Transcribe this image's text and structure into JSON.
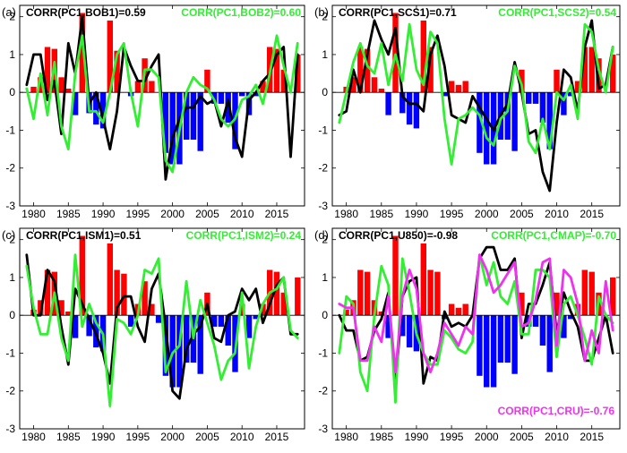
{
  "colors": {
    "positive_bar": "#ff0000",
    "negative_bar": "#0000ff",
    "black_line": "#000000",
    "green_line": "#33ee33",
    "magenta_line": "#ee33ee"
  },
  "chart_data": [
    {
      "type": "bar",
      "panel": "(a)",
      "title_left": "CORR(PC1,BOB1)=0.59",
      "title_right": "CORR(PC1,BOB2)=0.60",
      "xlim": [
        1978,
        2019
      ],
      "ylim": [
        -3,
        2.3
      ],
      "xticks": [
        1980,
        1985,
        1990,
        1995,
        2000,
        2005,
        2010,
        2015
      ],
      "yticks": [
        -3,
        -2,
        -1,
        0,
        1,
        2
      ],
      "x": [
        1979,
        1980,
        1981,
        1982,
        1983,
        1984,
        1985,
        1986,
        1987,
        1988,
        1989,
        1990,
        1991,
        1992,
        1993,
        1994,
        1995,
        1996,
        1997,
        1998,
        1999,
        2000,
        2001,
        2002,
        2003,
        2004,
        2005,
        2006,
        2007,
        2008,
        2009,
        2010,
        2011,
        2012,
        2013,
        2014,
        2015,
        2016,
        2017,
        2018
      ],
      "bars": [
        0.0,
        0.15,
        0.4,
        1.2,
        1.15,
        0.4,
        0.1,
        -0.6,
        2.1,
        -0.55,
        -0.85,
        -0.95,
        1.9,
        1.1,
        0.0,
        -0.1,
        0.3,
        0.9,
        0.3,
        0.0,
        -1.6,
        -1.9,
        -1.9,
        -1.25,
        -1.25,
        -1.55,
        0.6,
        -0.3,
        -0.3,
        -0.8,
        -1.5,
        -0.1,
        -0.6,
        -0.1,
        0.3,
        1.2,
        1.15,
        0.6,
        0.0,
        1.0
      ],
      "series": [
        {
          "name": "BOB1",
          "color": "black",
          "values": [
            0.2,
            1.0,
            1.0,
            -0.2,
            0.3,
            -1.1,
            1.3,
            0.5,
            2.0,
            -0.3,
            0.0,
            -0.7,
            -1.5,
            -0.5,
            1.2,
            0.7,
            0.3,
            0.3,
            0.7,
            1.0,
            -2.3,
            -1.2,
            -0.7,
            -0.4,
            -0.4,
            -0.1,
            -0.3,
            -0.2,
            -0.9,
            -0.2,
            -1.2,
            -1.7,
            -0.2,
            0.0,
            0.3,
            0.5,
            1.0,
            1.2,
            -1.7,
            1.0
          ]
        },
        {
          "name": "BOB2",
          "color": "green",
          "values": [
            0.1,
            -0.7,
            0.5,
            -0.6,
            0.8,
            -0.9,
            -1.5,
            0.5,
            1.5,
            -0.5,
            -0.5,
            -0.8,
            0.0,
            1.0,
            1.3,
            0.0,
            -0.9,
            0.6,
            0.6,
            0.4,
            -1.8,
            -2.1,
            -1.0,
            0.0,
            0.4,
            0.2,
            0.1,
            -0.2,
            -0.7,
            -0.9,
            -0.7,
            -0.2,
            -0.1,
            0.2,
            -0.3,
            0.5,
            1.5,
            0.7,
            0.0,
            1.3
          ]
        }
      ]
    },
    {
      "type": "bar",
      "panel": "(b)",
      "title_left": "CORR(PC1,SCS1)=0.71",
      "title_right": "CORR(PC1,SCS2)=0.54",
      "xlim": [
        1978,
        2019
      ],
      "ylim": [
        -3,
        2.3
      ],
      "xticks": [
        1980,
        1985,
        1990,
        1995,
        2000,
        2005,
        2010,
        2015
      ],
      "yticks": [
        -3,
        -2,
        -1,
        0,
        1,
        2
      ],
      "x": [
        1979,
        1980,
        1981,
        1982,
        1983,
        1984,
        1985,
        1986,
        1987,
        1988,
        1989,
        1990,
        1991,
        1992,
        1993,
        1994,
        1995,
        1996,
        1997,
        1998,
        1999,
        2000,
        2001,
        2002,
        2003,
        2004,
        2005,
        2006,
        2007,
        2008,
        2009,
        2010,
        2011,
        2012,
        2013,
        2014,
        2015,
        2016,
        2017,
        2018
      ],
      "bars": [
        0.0,
        0.15,
        0.4,
        1.2,
        1.15,
        0.4,
        0.1,
        -0.6,
        2.1,
        -0.55,
        -0.85,
        -0.95,
        1.9,
        1.2,
        0.0,
        -0.1,
        0.3,
        0.2,
        0.3,
        0.0,
        -1.6,
        -1.9,
        -1.9,
        -1.25,
        -1.25,
        -1.55,
        0.6,
        -0.3,
        -0.3,
        -0.8,
        -1.5,
        0.6,
        -0.6,
        -0.1,
        0.3,
        1.2,
        1.2,
        0.9,
        0.0,
        1.0
      ],
      "series": [
        {
          "name": "SCS1",
          "color": "black",
          "values": [
            -0.6,
            -0.5,
            0.6,
            0.0,
            1.0,
            1.9,
            1.4,
            1.0,
            1.7,
            -0.1,
            -0.3,
            -0.3,
            -0.5,
            1.0,
            1.5,
            0.7,
            -0.6,
            -0.7,
            -0.8,
            -0.1,
            -0.4,
            -0.7,
            -1.0,
            -0.6,
            -0.3,
            0.8,
            0.0,
            -1.1,
            -1.0,
            -2.1,
            -2.6,
            -0.8,
            0.6,
            0.4,
            -0.5,
            1.2,
            1.9,
            0.1,
            0.2,
            1.2
          ]
        },
        {
          "name": "SCS2",
          "color": "green",
          "values": [
            -0.8,
            0.0,
            0.8,
            1.3,
            0.7,
            0.5,
            1.3,
            0.2,
            1.0,
            0.3,
            1.8,
            0.6,
            0.2,
            1.6,
            1.3,
            -0.7,
            -1.9,
            -0.7,
            -0.6,
            -0.4,
            -0.6,
            -1.2,
            -1.4,
            -0.7,
            -0.5,
            0.7,
            0.2,
            -1.3,
            -1.6,
            -0.7,
            -1.5,
            0.0,
            -0.2,
            0.2,
            -0.7,
            1.8,
            1.6,
            0.6,
            0.0,
            1.2
          ]
        }
      ]
    },
    {
      "type": "bar",
      "panel": "(c)",
      "title_left": "CORR(PC1,ISM1)=0.51",
      "title_right": "CORR(PC1,ISM2)=0.24",
      "xlim": [
        1978,
        2019
      ],
      "ylim": [
        -3,
        2.3
      ],
      "xticks": [
        1980,
        1985,
        1990,
        1995,
        2000,
        2005,
        2010,
        2015
      ],
      "yticks": [
        -3,
        -2,
        -1,
        0,
        1,
        2
      ],
      "x": [
        1979,
        1980,
        1981,
        1982,
        1983,
        1984,
        1985,
        1986,
        1987,
        1988,
        1989,
        1990,
        1991,
        1992,
        1993,
        1994,
        1995,
        1996,
        1997,
        1998,
        1999,
        2000,
        2001,
        2002,
        2003,
        2004,
        2005,
        2006,
        2007,
        2008,
        2009,
        2010,
        2011,
        2012,
        2013,
        2014,
        2015,
        2016,
        2017,
        2018
      ],
      "bars": [
        0.0,
        0.15,
        0.4,
        1.2,
        1.15,
        0.4,
        0.1,
        -0.6,
        2.1,
        -0.55,
        -0.85,
        -0.95,
        1.9,
        1.2,
        1.1,
        -0.3,
        0.3,
        0.9,
        0.3,
        -0.2,
        -1.6,
        -1.9,
        -1.9,
        -1.25,
        -1.25,
        -1.55,
        0.6,
        -0.3,
        -0.3,
        -0.8,
        -1.5,
        0.3,
        -0.6,
        -0.1,
        0.3,
        1.2,
        1.15,
        0.6,
        0.0,
        1.0
      ],
      "series": [
        {
          "name": "ISM1",
          "color": "black",
          "values": [
            1.6,
            0.0,
            0.0,
            1.2,
            0.9,
            -0.3,
            -1.3,
            0.7,
            0.3,
            -0.1,
            -0.5,
            -1.0,
            -1.8,
            0.2,
            0.5,
            0.5,
            -0.3,
            -0.7,
            0.7,
            1.1,
            -0.3,
            -2.0,
            -2.2,
            -0.9,
            -0.5,
            -0.3,
            0.3,
            -0.6,
            -0.7,
            0.0,
            0.1,
            0.7,
            0.4,
            0.7,
            -0.2,
            0.3,
            0.8,
            1.0,
            -0.5,
            -0.5
          ]
        },
        {
          "name": "ISM2",
          "color": "green",
          "values": [
            1.3,
            0.2,
            -0.5,
            -0.5,
            0.6,
            -0.6,
            -1.2,
            1.6,
            -0.3,
            0.3,
            -0.2,
            -0.5,
            -2.4,
            -0.1,
            -0.2,
            -0.5,
            0.0,
            1.2,
            1.1,
            1.5,
            -1.5,
            -1.0,
            -0.8,
            0.9,
            -0.6,
            0.4,
            -0.2,
            -0.8,
            -1.7,
            -1.2,
            -1.0,
            0.6,
            -1.4,
            -0.3,
            0.3,
            0.6,
            0.7,
            1.0,
            -0.4,
            -0.6
          ]
        }
      ]
    },
    {
      "type": "bar",
      "panel": "(d)",
      "title_left": "CORR(PC1,U850)=-0.98",
      "title_right": "CORR(PC1,CMAP)=-0.70",
      "title_bottom": "CORR(PC1,CRU)=-0.76",
      "xlim": [
        1978,
        2019
      ],
      "ylim": [
        -3,
        2.3
      ],
      "xticks": [
        1980,
        1985,
        1990,
        1995,
        2000,
        2005,
        2010,
        2015
      ],
      "yticks": [
        -3,
        -2,
        -1,
        0,
        1,
        2
      ],
      "x": [
        1979,
        1980,
        1981,
        1982,
        1983,
        1984,
        1985,
        1986,
        1987,
        1988,
        1989,
        1990,
        1991,
        1992,
        1993,
        1994,
        1995,
        1996,
        1997,
        1998,
        1999,
        2000,
        2001,
        2002,
        2003,
        2004,
        2005,
        2006,
        2007,
        2008,
        2009,
        2010,
        2011,
        2012,
        2013,
        2014,
        2015,
        2016,
        2017,
        2018
      ],
      "bars": [
        0.0,
        0.15,
        0.4,
        1.2,
        1.15,
        0.4,
        0.1,
        -0.6,
        2.1,
        -0.55,
        -0.85,
        -0.95,
        1.9,
        1.2,
        1.15,
        -0.1,
        0.3,
        0.2,
        0.3,
        0.0,
        -1.6,
        -1.9,
        -1.9,
        -1.25,
        -1.25,
        -1.55,
        0.6,
        -0.3,
        -0.3,
        -0.8,
        -1.5,
        0.6,
        -0.6,
        -0.1,
        0.3,
        1.2,
        1.15,
        0.6,
        0.0,
        1.0
      ],
      "series": [
        {
          "name": "U850",
          "color": "black",
          "values": [
            0.0,
            -0.4,
            -0.4,
            -1.2,
            -1.1,
            -0.4,
            -0.1,
            0.6,
            -1.9,
            0.5,
            0.9,
            1.0,
            -1.8,
            -1.1,
            -1.2,
            0.1,
            -0.3,
            -0.2,
            -0.3,
            0.0,
            1.5,
            1.8,
            1.8,
            1.2,
            1.2,
            1.5,
            -0.6,
            0.3,
            0.3,
            0.8,
            1.4,
            -0.5,
            0.6,
            0.1,
            -0.3,
            -1.2,
            -1.2,
            -0.6,
            0.0,
            -1.0
          ]
        },
        {
          "name": "CMAP",
          "color": "green",
          "values": [
            -1.0,
            0.5,
            0.3,
            -1.5,
            -2.0,
            0.0,
            1.3,
            0.8,
            -2.3,
            1.5,
            0.6,
            -0.5,
            -1.0,
            -1.3,
            -1.3,
            -0.4,
            -0.6,
            -0.9,
            -1.0,
            -0.7,
            1.6,
            0.8,
            1.4,
            0.5,
            0.3,
            0.9,
            -0.5,
            -0.5,
            1.2,
            1.2,
            1.0,
            -1.1,
            0.3,
            0.5,
            0.0,
            -0.6,
            -1.3,
            0.5,
            0.0,
            -0.2
          ]
        },
        {
          "name": "CRU",
          "color": "magenta",
          "values": [
            0.3,
            0.2,
            0.2,
            -1.2,
            -1.2,
            -0.3,
            -0.7,
            0.5,
            -1.5,
            0.5,
            1.2,
            0.7,
            -1.0,
            -1.5,
            -1.0,
            -0.2,
            -0.5,
            -0.8,
            -0.3,
            -0.5,
            1.6,
            1.2,
            0.6,
            0.8,
            1.1,
            1.4,
            -0.3,
            -0.2,
            0.4,
            1.4,
            1.5,
            -0.8,
            1.2,
            1.0,
            0.3,
            -1.2,
            -0.4,
            -1.0,
            0.9,
            -0.4
          ]
        }
      ]
    }
  ]
}
